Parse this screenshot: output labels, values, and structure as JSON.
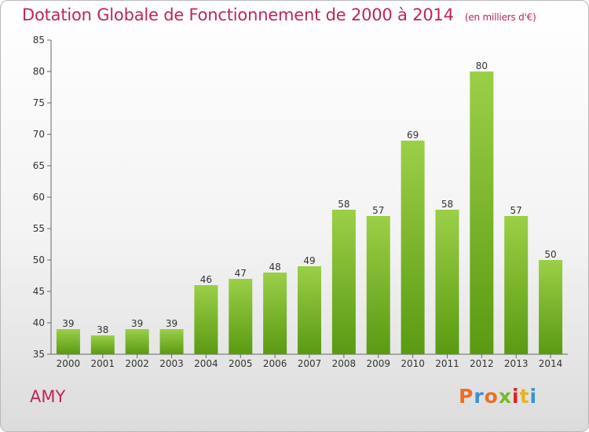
{
  "header": {
    "title": "Dotation Globale de Fonctionnement de 2000 à 2014",
    "subtitle": "(en milliers d'€)"
  },
  "footer": {
    "commune": "AMY",
    "logo": "Proxiti"
  },
  "colors": {
    "title": "#c0245b",
    "bar_top": "#9ccf48",
    "bar_bottom": "#5a9a12",
    "logo_letters": [
      "#e8702a",
      "#3a8fd6",
      "#e8702a",
      "#7ab829",
      "#d9261c",
      "#e8b31e",
      "#3a8fd6"
    ]
  },
  "chart_data": {
    "type": "bar",
    "title": "Dotation Globale de Fonctionnement de 2000 à 2014",
    "subtitle": "(en milliers d'€)",
    "categories": [
      "2000",
      "2001",
      "2002",
      "2003",
      "2004",
      "2005",
      "2006",
      "2007",
      "2008",
      "2009",
      "2010",
      "2011",
      "2012",
      "2013",
      "2014"
    ],
    "values": [
      39,
      38,
      39,
      39,
      46,
      47,
      48,
      49,
      58,
      57,
      69,
      58,
      80,
      57,
      50
    ],
    "ylim": [
      35,
      85
    ],
    "yticks": [
      35,
      40,
      45,
      50,
      55,
      60,
      65,
      70,
      75,
      80,
      85
    ],
    "grid": false,
    "xlabel": "",
    "ylabel": ""
  }
}
